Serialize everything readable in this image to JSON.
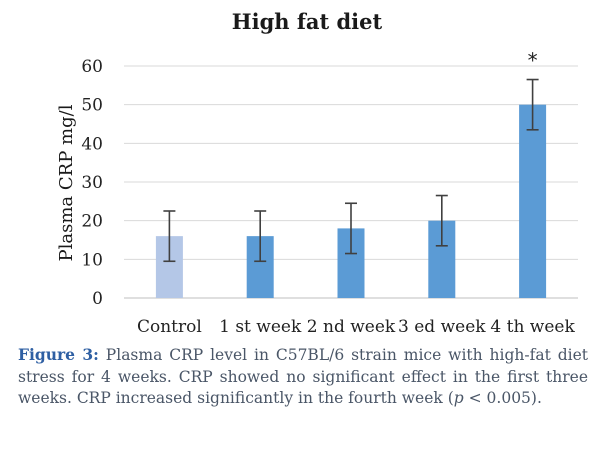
{
  "chart_data": {
    "type": "bar",
    "title": "High fat diet",
    "xlabel": "",
    "ylabel": "Plasma CRP mg/l",
    "ylim": [
      0,
      60
    ],
    "yticks": [
      0,
      10,
      20,
      30,
      40,
      50,
      60
    ],
    "categories": [
      "Control",
      "1 st week",
      "2 nd week",
      "3 ed week",
      "4 th week"
    ],
    "values": [
      16,
      16,
      18,
      20,
      50
    ],
    "error_low": [
      9.5,
      9.5,
      11.5,
      13.5,
      43.5
    ],
    "error_high": [
      22.5,
      22.5,
      24.5,
      26.5,
      56.5
    ],
    "bar_colors": [
      "#b4c7e7",
      "#5b9bd5",
      "#5b9bd5",
      "#5b9bd5",
      "#5b9bd5"
    ],
    "grid": true,
    "annotations": [
      {
        "category_index": 4,
        "text": "*"
      }
    ]
  },
  "caption": {
    "label": "Figure 3:",
    "text_before_p": " Plasma CRP level in C57BL/6 strain mice with high-fat diet stress for 4 weeks. CRP showed no significant effect in the first three weeks. CRP increased significantly in the fourth week (",
    "p_symbol": "p",
    "text_after_p": " < 0.005)."
  }
}
